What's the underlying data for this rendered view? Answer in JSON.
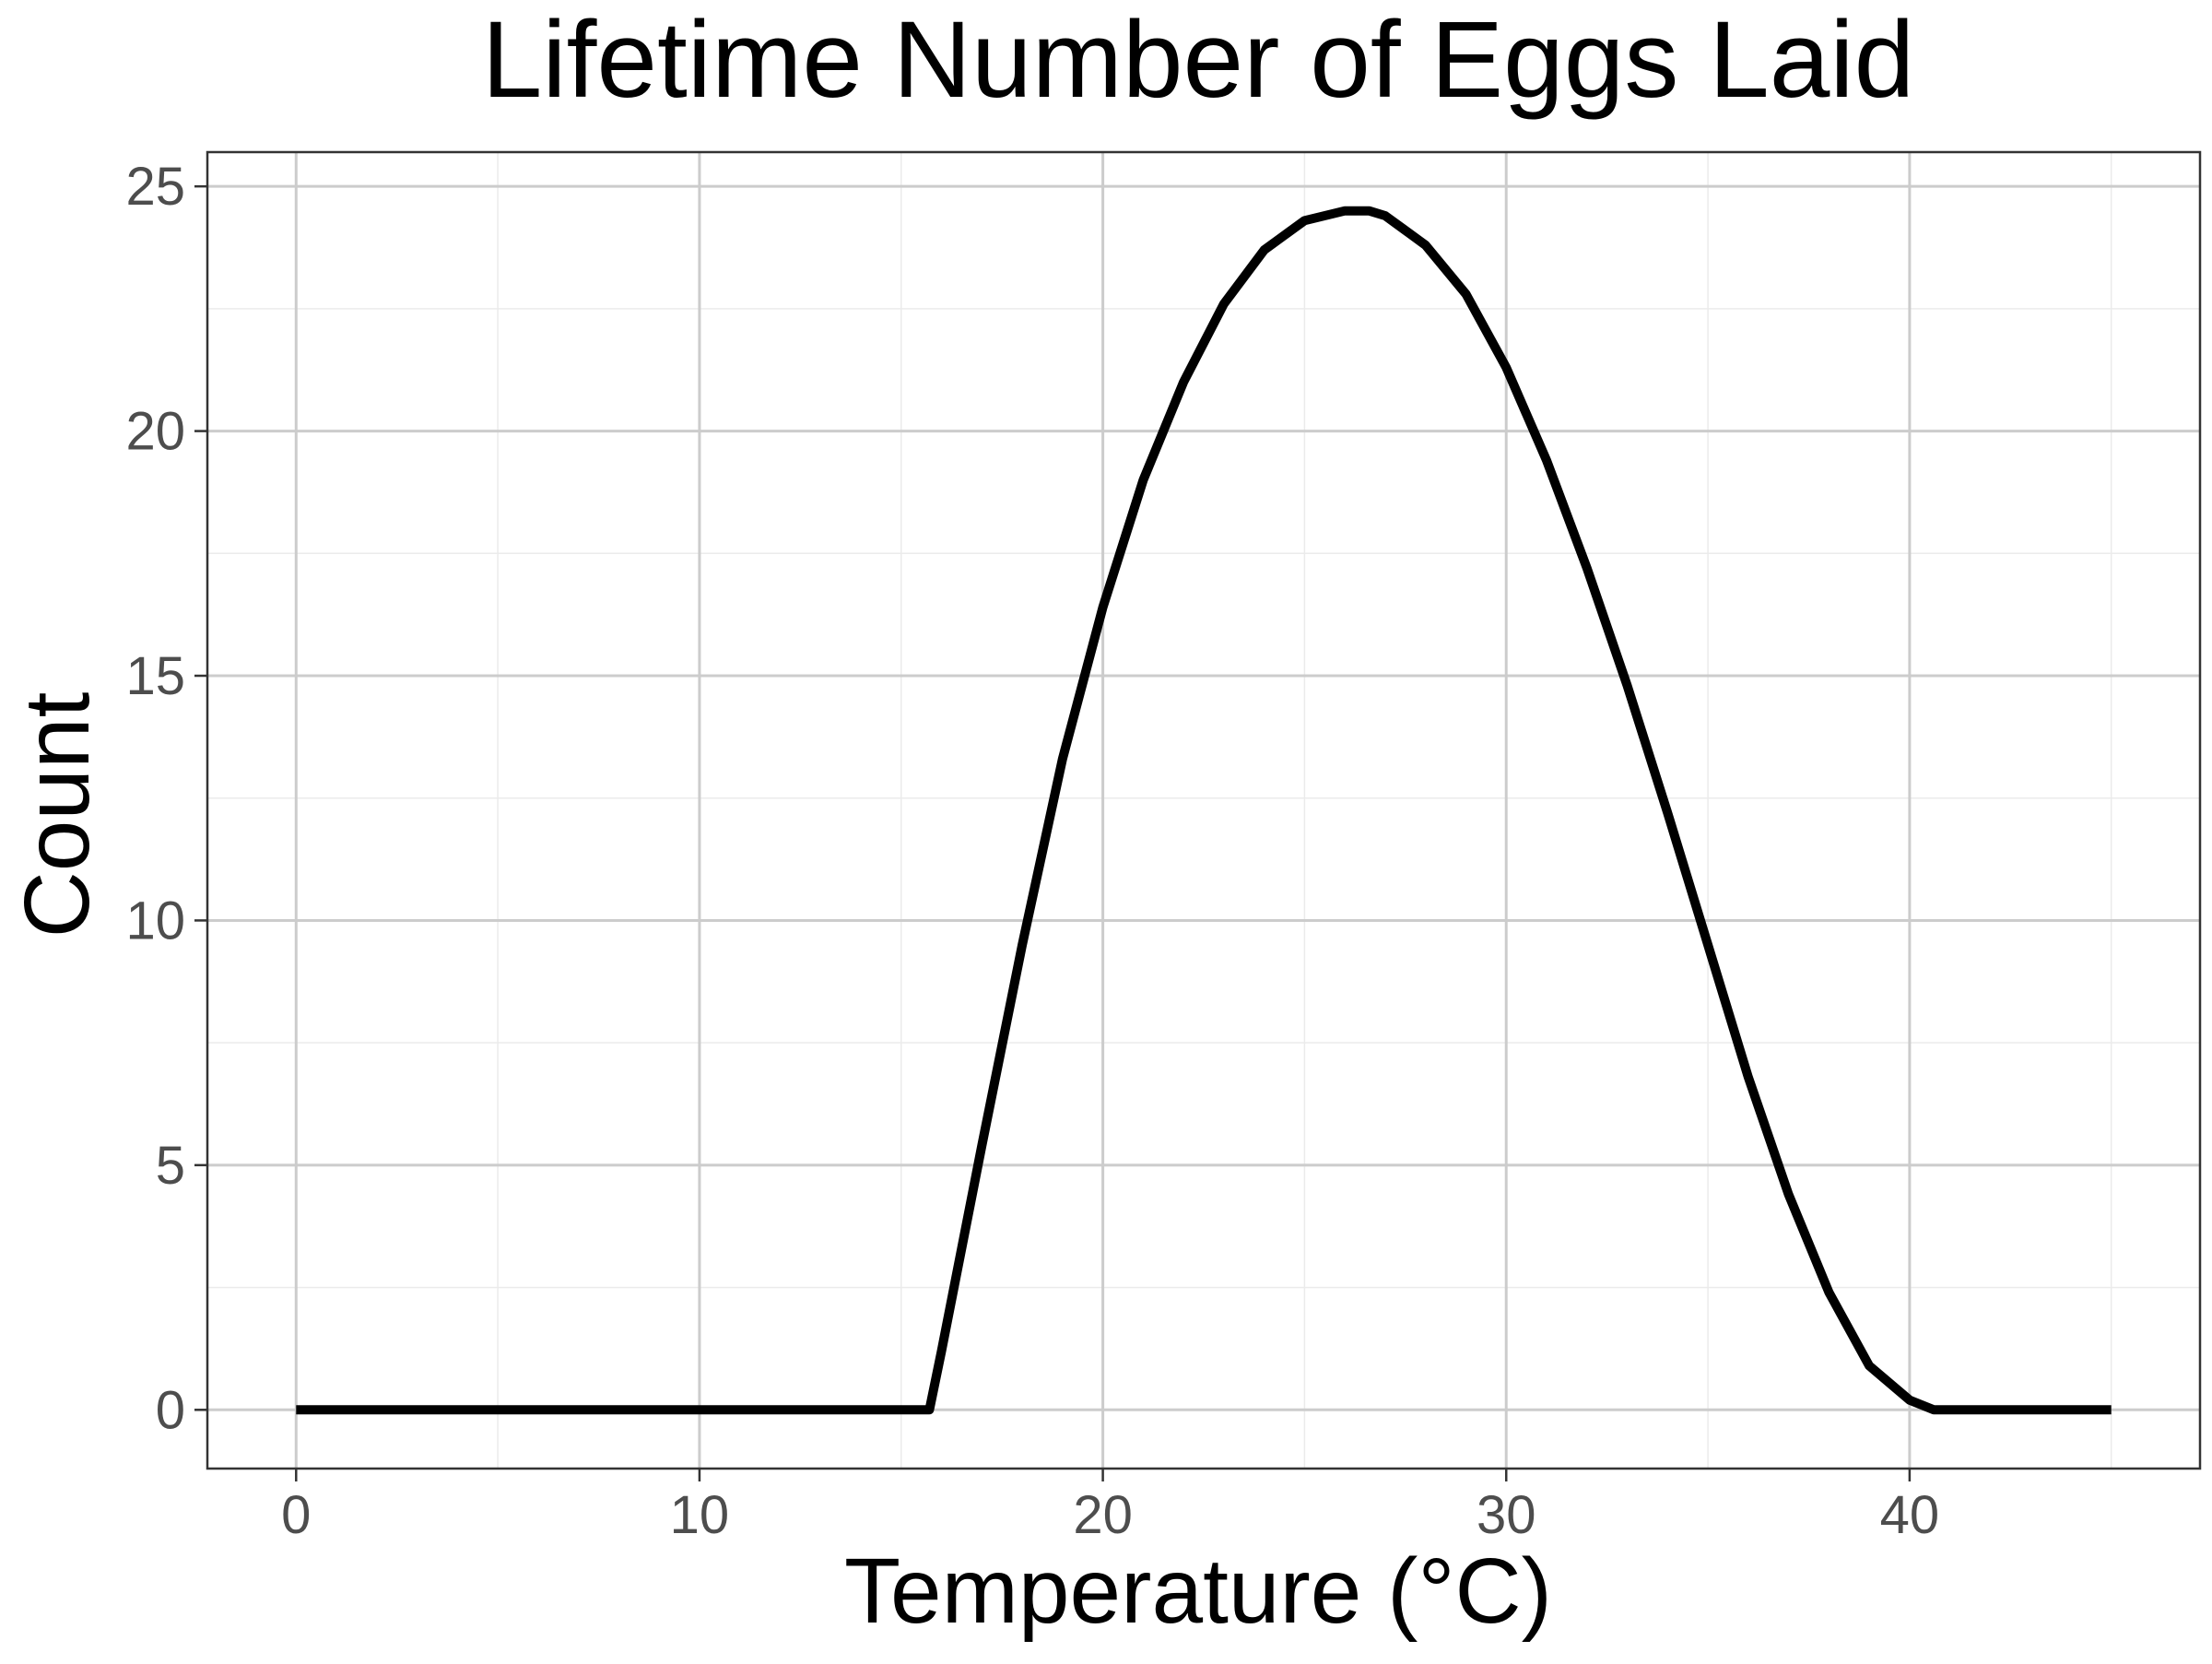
{
  "chart_data": {
    "type": "line",
    "title": "Lifetime Number of Eggs Laid",
    "xlabel": "Temperature (°C)",
    "ylabel": "Count",
    "xlim": [
      -2.2,
      47.2
    ],
    "ylim": [
      -1.2,
      25.7
    ],
    "x_ticks": [
      0,
      10,
      20,
      30,
      40
    ],
    "x_tick_labels": [
      "0",
      "10",
      "20",
      "30",
      "40"
    ],
    "y_ticks": [
      0,
      5,
      10,
      15,
      20,
      25
    ],
    "y_tick_labels": [
      "0",
      "5",
      "10",
      "15",
      "20",
      "25"
    ],
    "x_minor_ticks": [
      5,
      15,
      25,
      35,
      45
    ],
    "y_minor_ticks": [
      2.5,
      7.5,
      12.5,
      17.5,
      22.5
    ],
    "grid": true,
    "legend": "none",
    "colors": {
      "line": "#000000",
      "grid_major": "#cccccc",
      "grid_minor": "#ebebeb",
      "panel_border": "#333333",
      "tick_label": "#4d4d4d"
    },
    "series": [
      {
        "x": [
          0,
          5,
          10,
          15,
          15.7,
          16,
          17,
          18,
          19,
          20,
          21,
          22,
          23,
          24,
          25,
          26,
          26.6,
          27,
          28,
          29,
          30,
          31,
          32,
          33,
          34,
          35,
          36,
          37,
          38,
          39,
          40,
          40.6,
          41,
          45
        ],
        "y": [
          0,
          0,
          0,
          0,
          0,
          1.2,
          5.4,
          9.5,
          13.3,
          16.4,
          19.0,
          21.0,
          22.6,
          23.7,
          24.3,
          24.5,
          24.5,
          24.4,
          23.8,
          22.8,
          21.3,
          19.4,
          17.2,
          14.8,
          12.2,
          9.5,
          6.8,
          4.4,
          2.4,
          0.9,
          0.2,
          0,
          0,
          0
        ]
      }
    ]
  }
}
